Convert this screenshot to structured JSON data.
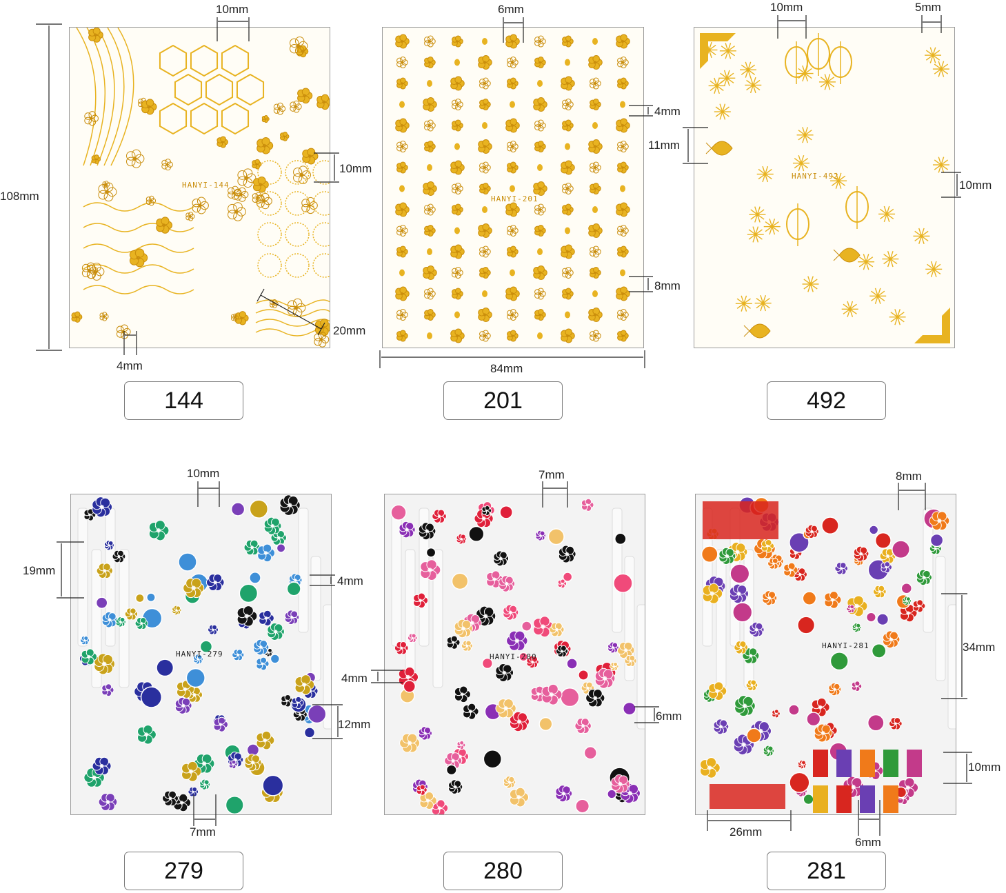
{
  "sheets": [
    {
      "id": "144",
      "code_text": "HANYI-144",
      "style": "gold",
      "dims": {
        "top": "10mm",
        "height": "108mm",
        "right_a": "10mm",
        "diag": "20mm",
        "bottom": "4mm"
      },
      "label": "144"
    },
    {
      "id": "201",
      "code_text": "HANYI-201",
      "style": "gold",
      "dims": {
        "top": "6mm",
        "right_a": "4mm",
        "right_b": "8mm",
        "width": "84mm"
      },
      "label": "201"
    },
    {
      "id": "492",
      "code_text": "HANYI-492",
      "style": "gold",
      "dims": {
        "top_a": "10mm",
        "top_b": "5mm",
        "left": "11mm",
        "right": "10mm"
      },
      "label": "492"
    },
    {
      "id": "279",
      "code_text": "HANYI-279",
      "style": "color",
      "dims": {
        "top": "10mm",
        "left": "19mm",
        "right_a": "4mm",
        "right_b": "12mm",
        "bottom": "7mm"
      },
      "label": "279"
    },
    {
      "id": "280",
      "code_text": "HANYI-280",
      "style": "color",
      "dims": {
        "top": "7mm",
        "left": "4mm",
        "right": "6mm"
      },
      "label": "280"
    },
    {
      "id": "281",
      "code_text": "HANYI-281",
      "style": "color",
      "dims": {
        "top": "8mm",
        "right_a": "34mm",
        "right_b": "10mm",
        "bottom_a": "26mm",
        "bottom_b": "6mm"
      },
      "label": "281"
    }
  ],
  "colors": {
    "gold": "#e8b321",
    "gold_dark": "#c98d0b",
    "palette_279": [
      "#2a2f9e",
      "#3e8fd8",
      "#1fa36b",
      "#151515",
      "#c9a21a",
      "#7a3fb8"
    ],
    "palette_280": [
      "#e0203a",
      "#f04a7a",
      "#e65f9c",
      "#8a2fb5",
      "#111111",
      "#f2c26a"
    ],
    "palette_281": [
      "#d8261f",
      "#6a3fb3",
      "#f07a1a",
      "#2f9a3a",
      "#c33a8a",
      "#e9b020"
    ]
  },
  "icons": [
    "dimension-arrow",
    "flower-motif",
    "lantern-motif",
    "fish-motif"
  ]
}
